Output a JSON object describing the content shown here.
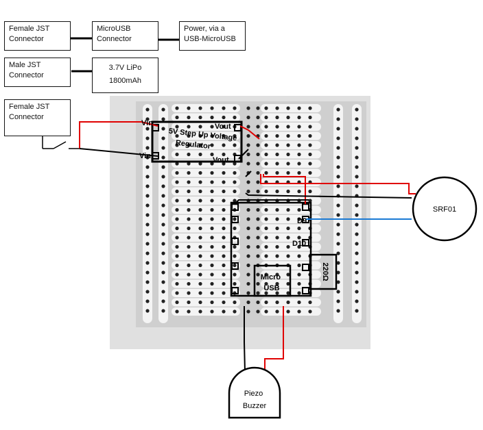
{
  "boxes": {
    "female_jst_top": "Female JST\nConnector",
    "microusb_connector": "MicroUSB\nConnector",
    "power_usb": "Power, via a\nUSB-MicroUSB",
    "male_jst": "Male JST\nConnector",
    "lipo": "3.7V LiPo\n1800mAh",
    "female_jst_switch": "Female JST\nConnector"
  },
  "regulator": {
    "title": "5V Step Up Voltage\nRegulator",
    "vin_top": "Vin",
    "vin_bottom": "Vin",
    "vout_top": "Vout",
    "vout_bottom": "Vout"
  },
  "microcontroller": {
    "pin_d9": "D9",
    "pin_d10": "D10",
    "usb_label": "Micro\nUSB"
  },
  "resistor": {
    "label": "220Ω"
  },
  "sensor": {
    "label": "SRF01"
  },
  "buzzer": {
    "label": "Piezo\nBuzzer"
  },
  "colors": {
    "board": "#dcdcdc",
    "strip": "#f4f4f4",
    "hole": "#222222",
    "wire_red": "#e00000",
    "wire_black": "#000000",
    "wire_blue": "#1a7ad4"
  }
}
